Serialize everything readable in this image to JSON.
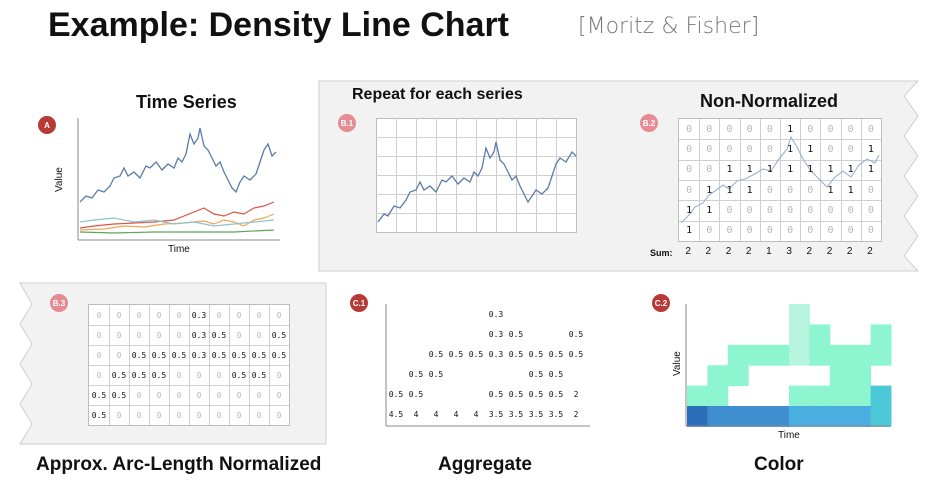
{
  "header": {
    "title": "Example: Density Line Chart",
    "citation": "[Moritz & Fisher]"
  },
  "panelA": {
    "badge": "A",
    "title": "Time Series",
    "ylabel": "Value",
    "xlabel": "Time",
    "colors": {
      "main": "#5a7bab",
      "red": "#d9544a",
      "orange": "#f0a45a",
      "teal": "#8fc3c8",
      "green": "#5aa85a"
    }
  },
  "panelB1": {
    "badge": "B.1",
    "title": "Repeat for each series"
  },
  "panelB2": {
    "badge": "B.2",
    "title": "Non-Normalized",
    "grid": [
      [
        "0",
        "0",
        "0",
        "0",
        "0",
        "1",
        "0",
        "0",
        "0",
        "0"
      ],
      [
        "0",
        "0",
        "0",
        "0",
        "0",
        "1",
        "1",
        "0",
        "0",
        "1"
      ],
      [
        "0",
        "0",
        "1",
        "1",
        "1",
        "1",
        "1",
        "1",
        "1",
        "1"
      ],
      [
        "0",
        "1",
        "1",
        "1",
        "0",
        "0",
        "0",
        "1",
        "1",
        "0"
      ],
      [
        "1",
        "1",
        "0",
        "0",
        "0",
        "0",
        "0",
        "0",
        "0",
        "0"
      ],
      [
        "1",
        "0",
        "0",
        "0",
        "0",
        "0",
        "0",
        "0",
        "0",
        "0"
      ]
    ],
    "sum_label": "Sum:",
    "sums": [
      "2",
      "2",
      "2",
      "2",
      "1",
      "3",
      "2",
      "2",
      "2",
      "2"
    ]
  },
  "panelB3": {
    "badge": "B.3",
    "caption": "Approx. Arc-Length Normalized",
    "grid": [
      [
        "0",
        "0",
        "0",
        "0",
        "0",
        "0.3",
        "0",
        "0",
        "0",
        "0"
      ],
      [
        "0",
        "0",
        "0",
        "0",
        "0",
        "0.3",
        "0.5",
        "0",
        "0",
        "0.5"
      ],
      [
        "0",
        "0",
        "0.5",
        "0.5",
        "0.5",
        "0.3",
        "0.5",
        "0.5",
        "0.5",
        "0.5"
      ],
      [
        "0",
        "0.5",
        "0.5",
        "0.5",
        "0",
        "0",
        "0",
        "0.5",
        "0.5",
        "0"
      ],
      [
        "0.5",
        "0.5",
        "0",
        "0",
        "0",
        "0",
        "0",
        "0",
        "0",
        "0"
      ],
      [
        "0.5",
        "0",
        "0",
        "0",
        "0",
        "0",
        "0",
        "0",
        "0",
        "0"
      ]
    ]
  },
  "panelC1": {
    "badge": "C.1",
    "caption": "Aggregate",
    "rows": [
      [
        "",
        "",
        "",
        "",
        "",
        "0.3",
        "",
        "",
        "",
        ""
      ],
      [
        "",
        "",
        "",
        "",
        "",
        "0.3",
        "0.5",
        "",
        "",
        "0.5"
      ],
      [
        "",
        "",
        "0.5",
        "0.5",
        "0.5",
        "0.3",
        "0.5",
        "0.5",
        "0.5",
        "0.5"
      ],
      [
        "",
        "0.5",
        "0.5",
        "",
        "",
        "",
        "",
        "0.5",
        "0.5",
        ""
      ],
      [
        "0.5",
        "0.5",
        "",
        "",
        "",
        "0.5",
        "0.5",
        "0.5",
        "0.5",
        "2"
      ],
      [
        "4.5",
        "4",
        "4",
        "4",
        "4",
        "3.5",
        "3.5",
        "3.5",
        "3.5",
        "2"
      ]
    ]
  },
  "panelC2": {
    "badge": "C.2",
    "caption": "Color",
    "ylabel": "Value",
    "xlabel": "Time",
    "colors": {
      "high": "#2b6fb8",
      "mid": "#3f8fd0",
      "low": "#8df5d0",
      "lighter": "#b8f5e0",
      "cyan": "#4cc8d8"
    }
  }
}
